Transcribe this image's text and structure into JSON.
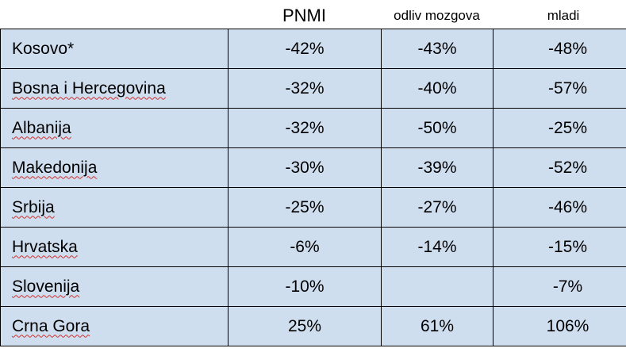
{
  "columns": {
    "pnmi": "PNMI",
    "odliv": "odliv mozgova",
    "mladi": "mladi"
  },
  "rows": [
    {
      "country": "Kosovo*",
      "pnmi": "-42%",
      "odliv": "-43%",
      "mladi": "-48%"
    },
    {
      "country": "Bosna i Hercegovina",
      "pnmi": "-32%",
      "odliv": "-40%",
      "mladi": "-57%"
    },
    {
      "country": "Albanija",
      "pnmi": "-32%",
      "odliv": "-50%",
      "mladi": "-25%"
    },
    {
      "country": "Makedonija",
      "pnmi": "-30%",
      "odliv": "-39%",
      "mladi": "-52%"
    },
    {
      "country": "Srbija",
      "pnmi": "-25%",
      "odliv": "-27%",
      "mladi": "-46%"
    },
    {
      "country": "Hrvatska",
      "pnmi": "-6%",
      "odliv": "-14%",
      "mladi": "-15%"
    },
    {
      "country": "Slovenija",
      "pnmi": "-10%",
      "odliv": "",
      "mladi": "-7%"
    },
    {
      "country": "Crna Gora",
      "pnmi": "25%",
      "odliv": "61%",
      "mladi": "106%"
    }
  ]
}
